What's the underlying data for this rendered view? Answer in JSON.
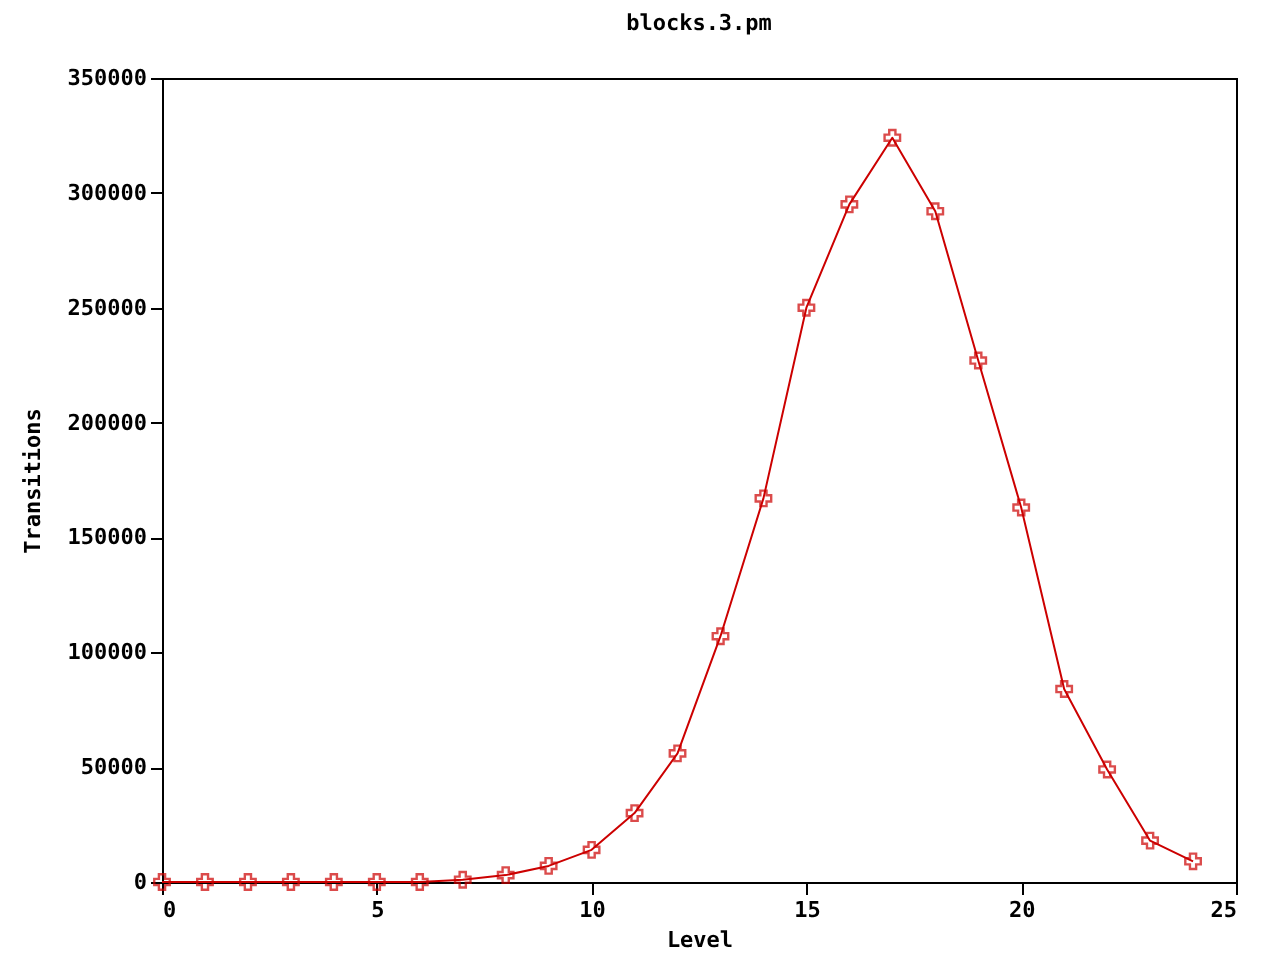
{
  "chart_data": {
    "type": "line",
    "title": "blocks.3.pm",
    "xlabel": "Level",
    "ylabel": "Transitions",
    "x": [
      0,
      1,
      2,
      3,
      4,
      5,
      6,
      7,
      8,
      9,
      10,
      11,
      12,
      13,
      14,
      15,
      16,
      17,
      18,
      19,
      20,
      21,
      22,
      23,
      24
    ],
    "series": [
      {
        "color": "#cc0000",
        "values": [
          0,
          0,
          0,
          0,
          0,
          0,
          0,
          1000,
          3000,
          7000,
          14000,
          30000,
          56000,
          107000,
          167000,
          250000,
          295000,
          324000,
          292000,
          227000,
          163000,
          84000,
          49000,
          18000,
          9000
        ]
      }
    ],
    "xlim": [
      0,
      25
    ],
    "xticks": [
      0,
      5,
      10,
      15,
      20,
      25
    ],
    "ylim": [
      0,
      350000
    ],
    "yticks": [
      0,
      50000,
      100000,
      150000,
      200000,
      250000,
      300000,
      350000
    ],
    "grid": false,
    "legend": false,
    "marker": "cross",
    "line_style": "solid"
  }
}
